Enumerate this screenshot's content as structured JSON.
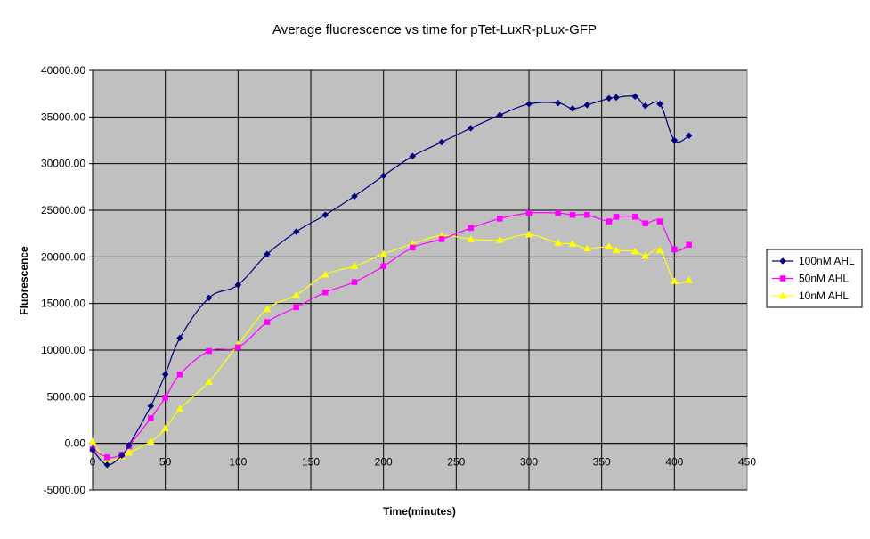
{
  "chart_data": {
    "type": "line",
    "title": "Average fluorescence vs time for pTet-LuxR-pLux-GFP",
    "xlabel": "Time(minutes)",
    "ylabel": "Fluorescence",
    "xlim": [
      0,
      450
    ],
    "ylim": [
      -5000,
      40000
    ],
    "x_ticks": [
      0,
      50,
      100,
      150,
      200,
      250,
      300,
      350,
      400,
      450
    ],
    "x_tick_labels": [
      "0",
      "50",
      "100",
      "150",
      "200",
      "250",
      "300",
      "350",
      "400",
      "450"
    ],
    "y_ticks": [
      -5000,
      0,
      5000,
      10000,
      15000,
      20000,
      25000,
      30000,
      35000,
      40000
    ],
    "y_tick_labels": [
      "-5000.00",
      "0.00",
      "5000.00",
      "10000.00",
      "15000.00",
      "20000.00",
      "25000.00",
      "30000.00",
      "35000.00",
      "40000.00"
    ],
    "grid": true,
    "plot_background": "#c0c0c0",
    "legend_position": "right",
    "series": [
      {
        "name": "100nM AHL",
        "color": "#000080",
        "marker": "diamond",
        "points": [
          [
            0,
            -700
          ],
          [
            10,
            -2300
          ],
          [
            20,
            -1300
          ],
          [
            25,
            -200
          ],
          [
            40,
            4000
          ],
          [
            50,
            7400
          ],
          [
            60,
            11300
          ],
          [
            80,
            15600
          ],
          [
            100,
            17000
          ],
          [
            120,
            20300
          ],
          [
            140,
            22700
          ],
          [
            160,
            24500
          ],
          [
            180,
            26500
          ],
          [
            200,
            28700
          ],
          [
            220,
            30800
          ],
          [
            240,
            32300
          ],
          [
            260,
            33800
          ],
          [
            280,
            35200
          ],
          [
            300,
            36400
          ],
          [
            320,
            36500
          ],
          [
            330,
            35900
          ],
          [
            340,
            36300
          ],
          [
            355,
            37000
          ],
          [
            360,
            37100
          ],
          [
            373,
            37200
          ],
          [
            380,
            36200
          ],
          [
            390,
            36400
          ],
          [
            400,
            32500
          ],
          [
            410,
            33000
          ]
        ]
      },
      {
        "name": "50nM AHL",
        "color": "#ff00ff",
        "marker": "square",
        "points": [
          [
            0,
            -600
          ],
          [
            10,
            -1500
          ],
          [
            20,
            -1200
          ],
          [
            25,
            -300
          ],
          [
            40,
            2700
          ],
          [
            50,
            4900
          ],
          [
            60,
            7400
          ],
          [
            80,
            9900
          ],
          [
            100,
            10300
          ],
          [
            120,
            13000
          ],
          [
            140,
            14600
          ],
          [
            160,
            16200
          ],
          [
            180,
            17300
          ],
          [
            200,
            19000
          ],
          [
            220,
            21000
          ],
          [
            240,
            21900
          ],
          [
            260,
            23100
          ],
          [
            280,
            24100
          ],
          [
            300,
            24700
          ],
          [
            320,
            24700
          ],
          [
            330,
            24500
          ],
          [
            340,
            24500
          ],
          [
            355,
            23800
          ],
          [
            360,
            24300
          ],
          [
            373,
            24300
          ],
          [
            380,
            23600
          ],
          [
            390,
            23800
          ],
          [
            400,
            20800
          ],
          [
            410,
            21300
          ]
        ]
      },
      {
        "name": "10nM AHL",
        "color": "#ffff00",
        "marker": "triangle",
        "points": [
          [
            0,
            200
          ],
          [
            10,
            -1800
          ],
          [
            20,
            -1400
          ],
          [
            25,
            -1000
          ],
          [
            40,
            200
          ],
          [
            50,
            1600
          ],
          [
            60,
            3700
          ],
          [
            80,
            6600
          ],
          [
            100,
            10600
          ],
          [
            120,
            14400
          ],
          [
            140,
            15900
          ],
          [
            160,
            18100
          ],
          [
            180,
            19000
          ],
          [
            200,
            20300
          ],
          [
            220,
            21400
          ],
          [
            240,
            22300
          ],
          [
            260,
            21900
          ],
          [
            280,
            21800
          ],
          [
            300,
            22400
          ],
          [
            320,
            21500
          ],
          [
            330,
            21400
          ],
          [
            340,
            20900
          ],
          [
            355,
            21100
          ],
          [
            360,
            20700
          ],
          [
            373,
            20600
          ],
          [
            380,
            20100
          ],
          [
            390,
            20700
          ],
          [
            400,
            17400
          ],
          [
            410,
            17500
          ]
        ]
      }
    ]
  }
}
